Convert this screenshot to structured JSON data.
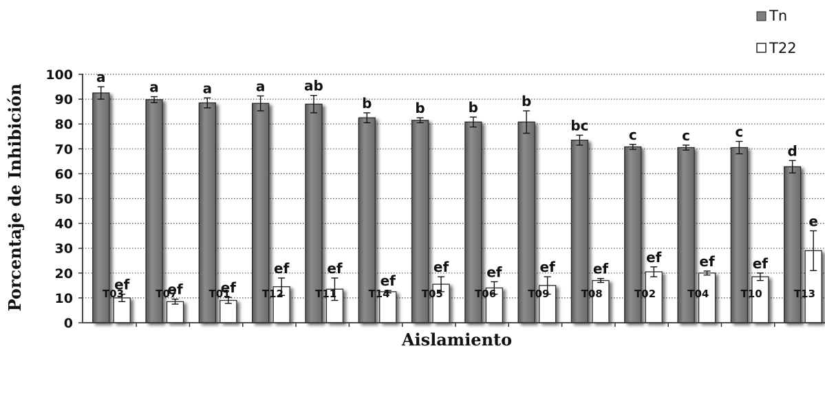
{
  "chart_data": {
    "type": "bar",
    "title": "",
    "xlabel": "Aislamiento",
    "ylabel": "Porcentaje de Inhibición",
    "ylim": [
      0,
      100
    ],
    "yticks": [
      0,
      10,
      20,
      30,
      40,
      50,
      60,
      70,
      80,
      90,
      100
    ],
    "grid": "horizontal dotted",
    "legend": "top-right",
    "categories": [
      "T03",
      "T07",
      "T01",
      "T12",
      "T11",
      "T14",
      "T05",
      "T06",
      "T09",
      "T08",
      "T02",
      "T04",
      "T10",
      "T13"
    ],
    "series": [
      {
        "name": "Tn",
        "color": "#808080",
        "values": [
          92.5,
          89.8,
          88.5,
          88.3,
          88.0,
          82.5,
          81.5,
          80.8,
          80.8,
          73.5,
          70.8,
          70.5,
          70.5,
          62.8
        ],
        "errors": [
          2.5,
          1.2,
          2.0,
          3.0,
          3.5,
          2.0,
          1.0,
          2.0,
          4.5,
          2.0,
          1.0,
          1.0,
          2.5,
          2.5
        ],
        "letters": [
          "a",
          "a",
          "a",
          "a",
          "ab",
          "b",
          "b",
          "b",
          "b",
          "bc",
          "c",
          "c",
          "c",
          "d"
        ]
      },
      {
        "name": "T22",
        "color": "#ffffff",
        "values": [
          10.0,
          8.5,
          9.0,
          14.5,
          13.5,
          12.5,
          15.5,
          14.0,
          15.0,
          17.0,
          20.5,
          20.0,
          18.5,
          29.0
        ],
        "errors": [
          1.5,
          1.0,
          1.2,
          3.5,
          4.5,
          0.5,
          3.0,
          2.5,
          3.5,
          0.8,
          2.0,
          0.8,
          1.5,
          8.0
        ],
        "letters": [
          "ef",
          "ef",
          "ef",
          "ef",
          "ef",
          "ef",
          "ef",
          "ef",
          "ef",
          "ef",
          "ef",
          "ef",
          "ef",
          "e"
        ]
      }
    ]
  }
}
